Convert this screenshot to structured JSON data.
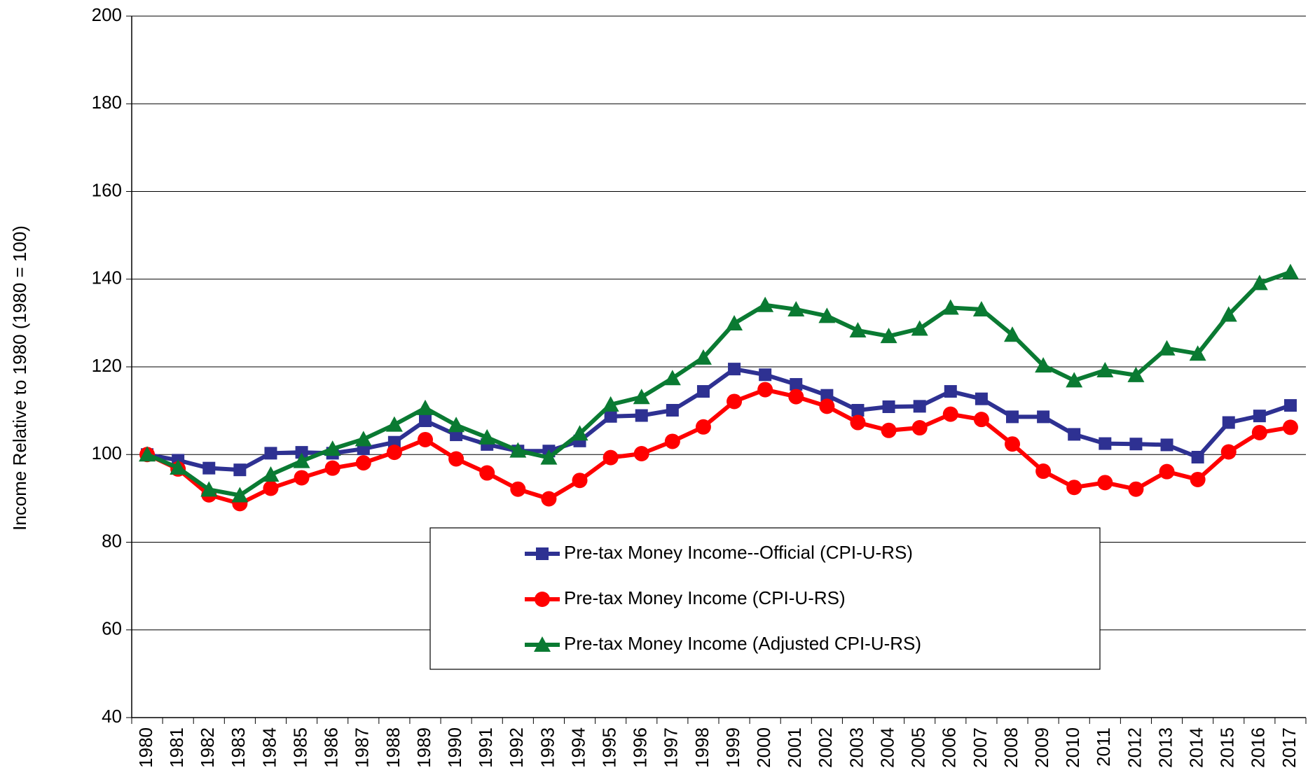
{
  "chart_data": {
    "type": "line",
    "y_label": "Income Relative to 1980 (1980 = 100)",
    "categories": [
      "1980",
      "1981",
      "1982",
      "1983",
      "1984",
      "1985",
      "1986",
      "1987",
      "1988",
      "1989",
      "1990",
      "1991",
      "1992",
      "1993",
      "1994",
      "1995",
      "1996",
      "1997",
      "1998",
      "1999",
      "2000",
      "2001",
      "2002",
      "2003",
      "2004",
      "2005",
      "2006",
      "2007",
      "2008",
      "2009",
      "2010",
      "2011",
      "2012",
      "2013",
      "2014",
      "2015",
      "2016",
      "2017"
    ],
    "series": [
      {
        "name": "Pre-tax Money Income--Official (CPI-U-RS)",
        "color": "#2e3192",
        "marker": "square",
        "values": [
          100,
          98.7,
          96.9,
          96.5,
          100.3,
          100.5,
          100.3,
          101.3,
          102.8,
          107.7,
          104.5,
          102.3,
          100.8,
          100.8,
          103.1,
          108.7,
          108.9,
          110.1,
          114.4,
          119.5,
          118.2,
          116.0,
          113.5,
          110.1,
          110.9,
          111.0,
          114.4,
          112.7,
          108.6,
          108.6,
          104.6,
          102.5,
          102.4,
          102.2,
          99.4,
          107.3,
          108.8,
          111.2
        ]
      },
      {
        "name": "Pre-tax Money Income (CPI-U-RS)",
        "color": "#ff0000",
        "marker": "circle",
        "values": [
          100,
          96.7,
          90.8,
          88.8,
          92.3,
          94.7,
          96.9,
          98.1,
          100.5,
          103.4,
          99.0,
          95.8,
          92.1,
          89.9,
          94.1,
          99.3,
          100.2,
          103.0,
          106.3,
          112.1,
          114.8,
          113.2,
          111.0,
          107.3,
          105.5,
          106.1,
          109.2,
          108.0,
          102.4,
          96.2,
          92.5,
          93.6,
          92.1,
          96.1,
          94.3,
          100.6,
          105.0,
          106.2
        ]
      },
      {
        "name": "Pre-tax Money Income (Adjusted CPI-U-RS)",
        "color": "#0a7a32",
        "marker": "triangle",
        "values": [
          100,
          97.0,
          92.0,
          90.7,
          95.4,
          98.5,
          101.3,
          103.5,
          106.8,
          110.6,
          106.7,
          103.9,
          100.9,
          99.3,
          104.8,
          111.4,
          113.1,
          117.4,
          122.1,
          129.9,
          134.1,
          133.1,
          131.6,
          128.3,
          127.0,
          128.7,
          133.5,
          133.1,
          127.3,
          120.3,
          116.9,
          119.2,
          118.1,
          124.2,
          123.0,
          131.9,
          139.1,
          141.6
        ]
      }
    ],
    "ylim": [
      40,
      200
    ],
    "yticks": [
      40,
      60,
      80,
      100,
      120,
      140,
      160,
      180,
      200
    ],
    "grid": true
  }
}
